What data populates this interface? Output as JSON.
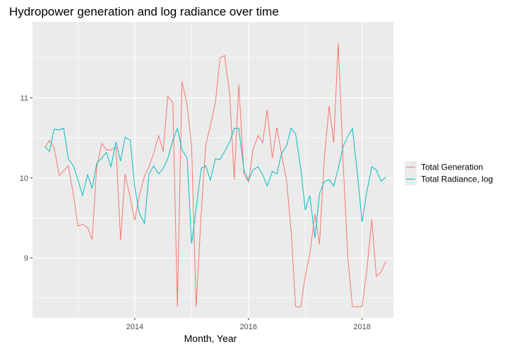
{
  "chart_data": {
    "type": "line",
    "title": "Hydropower generation and log radiance over time",
    "xlabel": "Month, Year",
    "ylabel": "",
    "xlim": [
      2012.2,
      2018.55
    ],
    "ylim": [
      8.25,
      11.95
    ],
    "x_ticks": [
      2014,
      2016,
      2018
    ],
    "x_tick_labels": [
      "2014",
      "2016",
      "2018"
    ],
    "y_ticks": [
      9,
      10,
      11
    ],
    "y_tick_labels": [
      "9",
      "10",
      "11"
    ],
    "grid": true,
    "legend_position": "right",
    "series": [
      {
        "name": "Total Generation",
        "color": "#F8766D",
        "points": [
          [
            2012.42,
            10.38
          ],
          [
            2012.5,
            10.47
          ],
          [
            2012.58,
            10.38
          ],
          [
            2012.67,
            10.03
          ],
          [
            2012.75,
            10.09
          ],
          [
            2012.83,
            10.15
          ],
          [
            2012.92,
            9.79
          ],
          [
            2013.0,
            9.4
          ],
          [
            2013.08,
            9.42
          ],
          [
            2013.17,
            9.38
          ],
          [
            2013.25,
            9.23
          ],
          [
            2013.33,
            10.14
          ],
          [
            2013.42,
            10.43
          ],
          [
            2013.5,
            10.35
          ],
          [
            2013.58,
            10.35
          ],
          [
            2013.67,
            10.38
          ],
          [
            2013.75,
            9.22
          ],
          [
            2013.83,
            10.05
          ],
          [
            2013.92,
            9.75
          ],
          [
            2014.0,
            9.47
          ],
          [
            2014.08,
            9.78
          ],
          [
            2014.17,
            10.02
          ],
          [
            2014.25,
            10.14
          ],
          [
            2014.33,
            10.3
          ],
          [
            2014.42,
            10.53
          ],
          [
            2014.5,
            10.33
          ],
          [
            2014.58,
            11.02
          ],
          [
            2014.67,
            10.94
          ],
          [
            2014.75,
            8.39
          ],
          [
            2014.83,
            11.21
          ],
          [
            2014.92,
            10.92
          ],
          [
            2015.0,
            10.4
          ],
          [
            2015.08,
            8.39
          ],
          [
            2015.17,
            9.57
          ],
          [
            2015.25,
            10.42
          ],
          [
            2015.33,
            10.65
          ],
          [
            2015.42,
            10.95
          ],
          [
            2015.5,
            11.5
          ],
          [
            2015.58,
            11.53
          ],
          [
            2015.67,
            11.05
          ],
          [
            2015.75,
            9.98
          ],
          [
            2015.83,
            11.17
          ],
          [
            2015.92,
            10.05
          ],
          [
            2016.0,
            9.95
          ],
          [
            2016.08,
            10.35
          ],
          [
            2016.17,
            10.53
          ],
          [
            2016.25,
            10.44
          ],
          [
            2016.33,
            10.85
          ],
          [
            2016.42,
            10.25
          ],
          [
            2016.5,
            10.63
          ],
          [
            2016.58,
            10.31
          ],
          [
            2016.67,
            9.97
          ],
          [
            2016.75,
            9.35
          ],
          [
            2016.83,
            8.39
          ],
          [
            2016.92,
            8.39
          ],
          [
            2017.0,
            8.78
          ],
          [
            2017.08,
            9.05
          ],
          [
            2017.17,
            9.55
          ],
          [
            2017.25,
            9.17
          ],
          [
            2017.33,
            10.2
          ],
          [
            2017.42,
            10.9
          ],
          [
            2017.5,
            10.44
          ],
          [
            2017.58,
            11.69
          ],
          [
            2017.67,
            10.14
          ],
          [
            2017.75,
            9.0
          ],
          [
            2017.83,
            8.39
          ],
          [
            2017.92,
            8.39
          ],
          [
            2018.0,
            8.39
          ],
          [
            2018.08,
            8.83
          ],
          [
            2018.17,
            9.48
          ],
          [
            2018.25,
            8.77
          ],
          [
            2018.33,
            8.82
          ],
          [
            2018.42,
            8.96
          ]
        ]
      },
      {
        "name": "Total Radiance, log",
        "color": "#00BFC4",
        "points": [
          [
            2012.42,
            10.39
          ],
          [
            2012.5,
            10.33
          ],
          [
            2012.58,
            10.61
          ],
          [
            2012.67,
            10.6
          ],
          [
            2012.75,
            10.62
          ],
          [
            2012.83,
            10.24
          ],
          [
            2012.92,
            10.15
          ],
          [
            2013.0,
            9.98
          ],
          [
            2013.08,
            9.78
          ],
          [
            2013.17,
            10.04
          ],
          [
            2013.25,
            9.87
          ],
          [
            2013.33,
            10.18
          ],
          [
            2013.42,
            10.25
          ],
          [
            2013.5,
            10.32
          ],
          [
            2013.58,
            10.14
          ],
          [
            2013.67,
            10.45
          ],
          [
            2013.75,
            10.21
          ],
          [
            2013.83,
            10.51
          ],
          [
            2013.92,
            10.47
          ],
          [
            2014.0,
            9.88
          ],
          [
            2014.08,
            9.56
          ],
          [
            2014.17,
            9.43
          ],
          [
            2014.25,
            10.05
          ],
          [
            2014.33,
            10.15
          ],
          [
            2014.42,
            10.05
          ],
          [
            2014.5,
            10.12
          ],
          [
            2014.58,
            10.24
          ],
          [
            2014.67,
            10.47
          ],
          [
            2014.75,
            10.62
          ],
          [
            2014.83,
            10.35
          ],
          [
            2014.92,
            10.25
          ],
          [
            2015.0,
            9.18
          ],
          [
            2015.08,
            9.62
          ],
          [
            2015.17,
            10.12
          ],
          [
            2015.25,
            10.15
          ],
          [
            2015.33,
            9.97
          ],
          [
            2015.42,
            10.24
          ],
          [
            2015.5,
            10.23
          ],
          [
            2015.58,
            10.33
          ],
          [
            2015.67,
            10.45
          ],
          [
            2015.75,
            10.62
          ],
          [
            2015.83,
            10.62
          ],
          [
            2015.92,
            10.1
          ],
          [
            2016.0,
            9.97
          ],
          [
            2016.08,
            10.1
          ],
          [
            2016.17,
            10.14
          ],
          [
            2016.25,
            10.04
          ],
          [
            2016.33,
            9.9
          ],
          [
            2016.42,
            10.08
          ],
          [
            2016.5,
            10.05
          ],
          [
            2016.58,
            10.3
          ],
          [
            2016.67,
            10.4
          ],
          [
            2016.75,
            10.62
          ],
          [
            2016.83,
            10.55
          ],
          [
            2016.92,
            10.12
          ],
          [
            2017.0,
            9.6
          ],
          [
            2017.08,
            9.78
          ],
          [
            2017.17,
            9.25
          ],
          [
            2017.25,
            9.8
          ],
          [
            2017.33,
            9.95
          ],
          [
            2017.42,
            9.98
          ],
          [
            2017.5,
            9.9
          ],
          [
            2017.58,
            10.12
          ],
          [
            2017.67,
            10.4
          ],
          [
            2017.75,
            10.52
          ],
          [
            2017.83,
            10.62
          ],
          [
            2017.92,
            10.03
          ],
          [
            2018.0,
            9.45
          ],
          [
            2018.08,
            9.82
          ],
          [
            2018.17,
            10.14
          ],
          [
            2018.25,
            10.1
          ],
          [
            2018.33,
            9.96
          ],
          [
            2018.42,
            10.01
          ]
        ]
      }
    ]
  }
}
